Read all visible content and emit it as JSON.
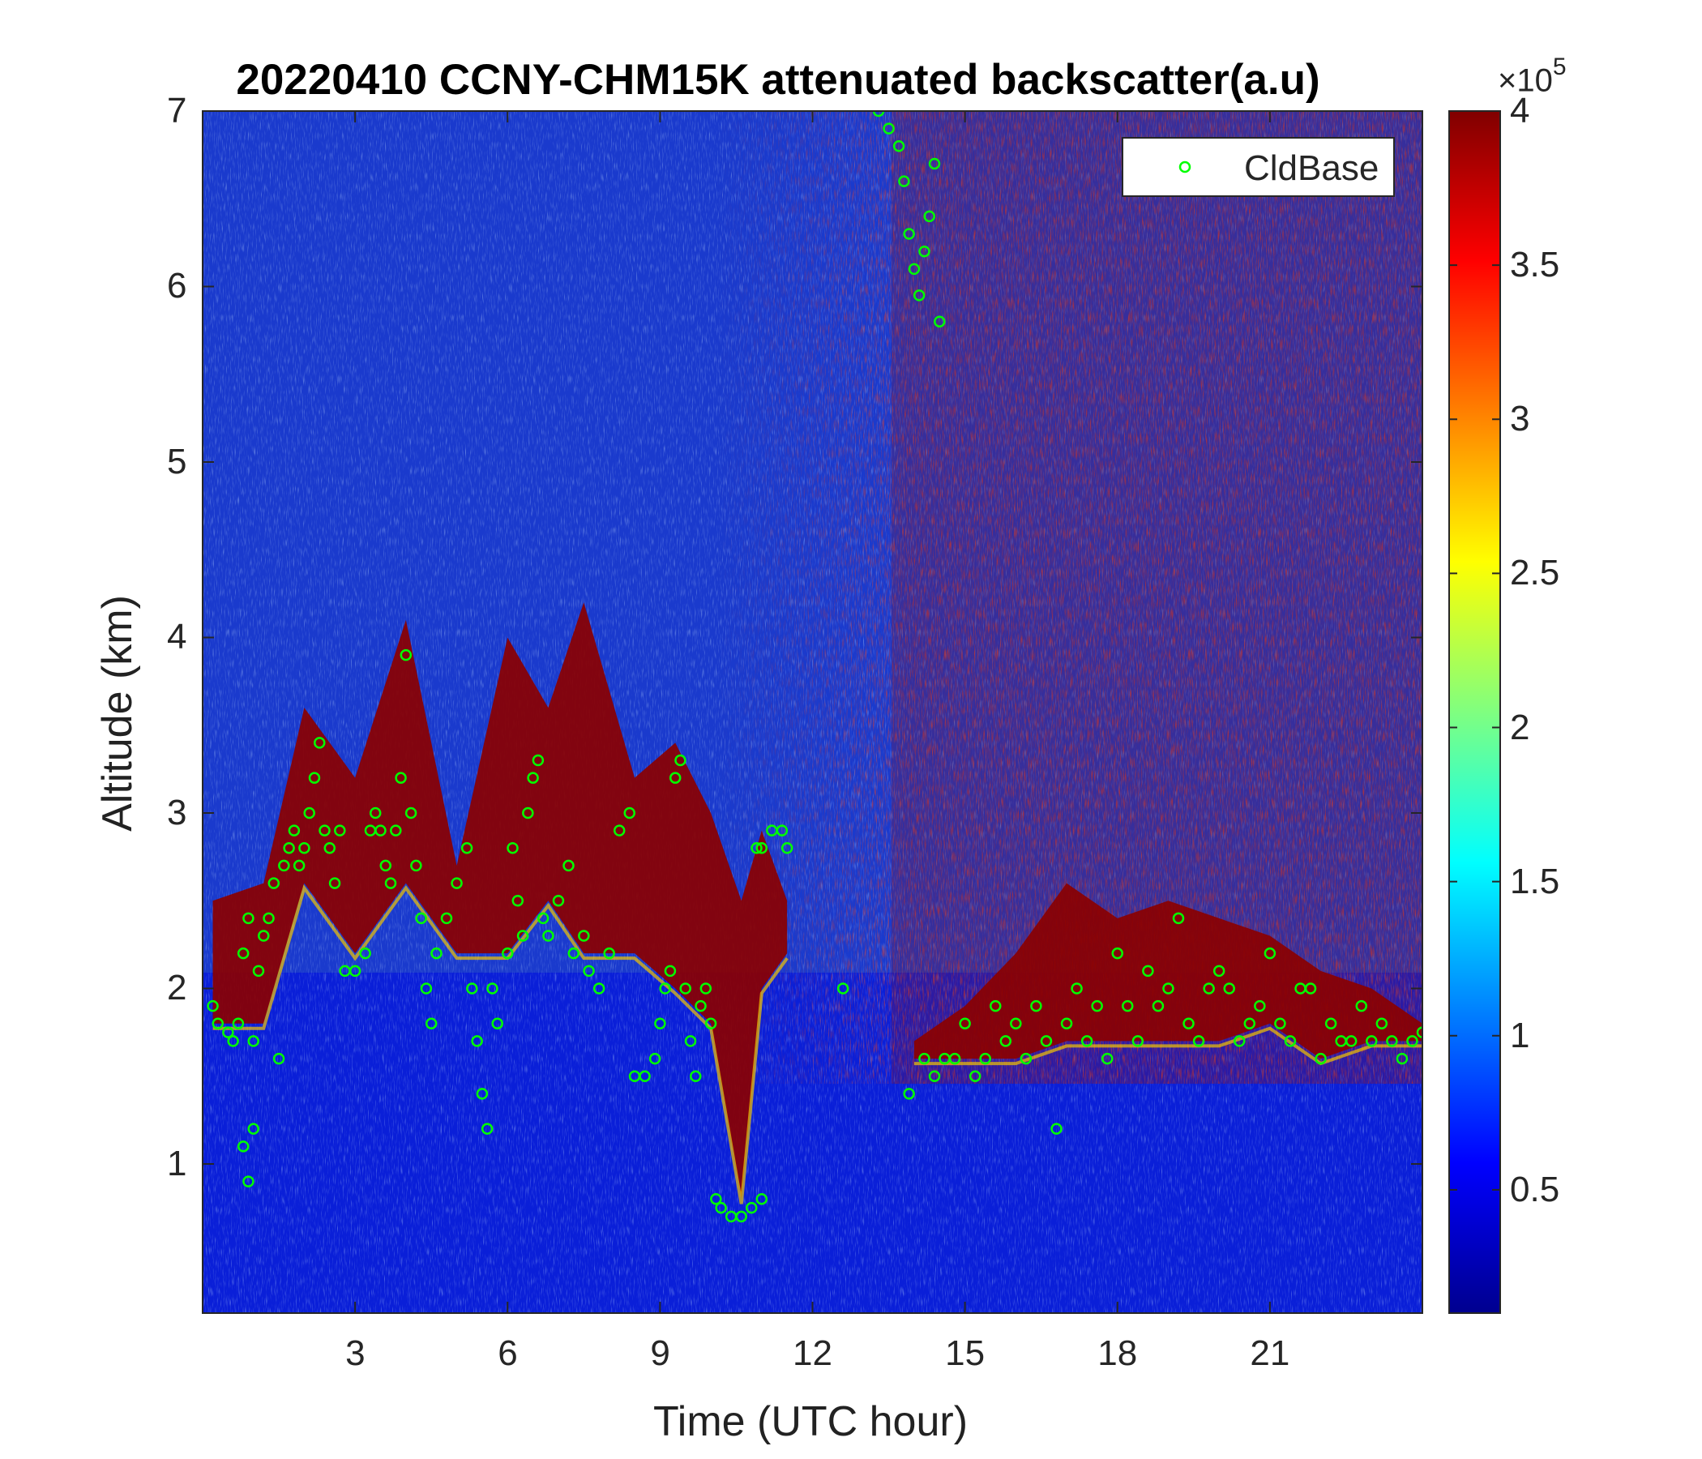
{
  "chart_data": {
    "type": "heatmap",
    "title": "20220410 CCNY-CHM15K attenuated backscatter(a.u)",
    "xlabel": "Time (UTC hour)",
    "ylabel": "Altitude (km)",
    "xlim": [
      0,
      24
    ],
    "ylim": [
      0.15,
      7
    ],
    "x_ticks": [
      "3",
      "6",
      "9",
      "12",
      "15",
      "18",
      "21"
    ],
    "y_ticks": [
      "1",
      "2",
      "3",
      "4",
      "5",
      "6",
      "7"
    ],
    "colorbar": {
      "colormap": "jet",
      "range": [
        0.1,
        4.0
      ],
      "ticks": [
        "0.5",
        "1",
        "1.5",
        "2",
        "2.5",
        "3",
        "3.5",
        "4"
      ],
      "exponent_label": "×10",
      "exponent": "5"
    },
    "legend": {
      "position": "top-right",
      "entries": [
        {
          "name": "CldBase",
          "marker": "circle",
          "color": "#00ff00"
        }
      ]
    },
    "cloud_layers": [
      {
        "x": [
          0.2,
          1.2,
          2.0,
          3.0,
          4.0,
          5.0,
          6.0,
          6.8,
          7.5,
          8.5,
          9.3,
          10.0,
          10.6,
          11.0,
          11.5
        ],
        "base": [
          1.8,
          1.8,
          2.6,
          2.2,
          2.6,
          2.2,
          2.2,
          2.5,
          2.2,
          2.2,
          2.0,
          1.8,
          0.8,
          2.0,
          2.2
        ],
        "top": [
          2.5,
          2.6,
          3.6,
          3.2,
          4.1,
          2.7,
          4.0,
          3.6,
          4.2,
          3.2,
          3.4,
          3.0,
          2.5,
          2.9,
          2.5
        ]
      },
      {
        "x": [
          14.0,
          15.0,
          16.0,
          17.0,
          18.0,
          19.0,
          20.0,
          21.0,
          22.0,
          23.0,
          24.0
        ],
        "base": [
          1.6,
          1.6,
          1.6,
          1.7,
          1.7,
          1.7,
          1.7,
          1.8,
          1.6,
          1.7,
          1.7
        ],
        "top": [
          1.7,
          1.9,
          2.2,
          2.6,
          2.4,
          2.5,
          2.4,
          2.3,
          2.1,
          2.0,
          1.8
        ]
      }
    ],
    "series": [
      {
        "name": "CldBase",
        "points": [
          [
            0.2,
            1.9
          ],
          [
            0.3,
            1.8
          ],
          [
            0.5,
            1.75
          ],
          [
            0.6,
            1.7
          ],
          [
            0.7,
            1.8
          ],
          [
            0.8,
            2.2
          ],
          [
            0.9,
            2.4
          ],
          [
            0.8,
            1.1
          ],
          [
            0.9,
            0.9
          ],
          [
            1.0,
            1.2
          ],
          [
            1.0,
            1.7
          ],
          [
            1.1,
            2.1
          ],
          [
            1.2,
            2.3
          ],
          [
            1.3,
            2.4
          ],
          [
            1.4,
            2.6
          ],
          [
            1.5,
            1.6
          ],
          [
            1.6,
            2.7
          ],
          [
            1.7,
            2.8
          ],
          [
            1.8,
            2.9
          ],
          [
            1.9,
            2.7
          ],
          [
            2.0,
            2.8
          ],
          [
            2.1,
            3.0
          ],
          [
            2.2,
            3.2
          ],
          [
            2.3,
            3.4
          ],
          [
            2.4,
            2.9
          ],
          [
            2.5,
            2.8
          ],
          [
            2.6,
            2.6
          ],
          [
            2.7,
            2.9
          ],
          [
            2.8,
            2.1
          ],
          [
            3.0,
            2.1
          ],
          [
            3.2,
            2.2
          ],
          [
            3.3,
            2.9
          ],
          [
            3.4,
            3.0
          ],
          [
            3.5,
            2.9
          ],
          [
            3.6,
            2.7
          ],
          [
            3.7,
            2.6
          ],
          [
            3.8,
            2.9
          ],
          [
            3.9,
            3.2
          ],
          [
            4.0,
            3.9
          ],
          [
            4.1,
            3.0
          ],
          [
            4.2,
            2.7
          ],
          [
            4.3,
            2.4
          ],
          [
            4.4,
            2.0
          ],
          [
            4.5,
            1.8
          ],
          [
            4.6,
            2.2
          ],
          [
            4.8,
            2.4
          ],
          [
            5.0,
            2.6
          ],
          [
            5.2,
            2.8
          ],
          [
            5.3,
            2.0
          ],
          [
            5.4,
            1.7
          ],
          [
            5.5,
            1.4
          ],
          [
            5.6,
            1.2
          ],
          [
            5.7,
            2.0
          ],
          [
            5.8,
            1.8
          ],
          [
            6.0,
            2.2
          ],
          [
            6.1,
            2.8
          ],
          [
            6.2,
            2.5
          ],
          [
            6.3,
            2.3
          ],
          [
            6.4,
            3.0
          ],
          [
            6.5,
            3.2
          ],
          [
            6.6,
            3.3
          ],
          [
            6.7,
            2.4
          ],
          [
            6.8,
            2.3
          ],
          [
            7.0,
            2.5
          ],
          [
            7.2,
            2.7
          ],
          [
            7.3,
            2.2
          ],
          [
            7.5,
            2.3
          ],
          [
            7.6,
            2.1
          ],
          [
            7.8,
            2.0
          ],
          [
            8.0,
            2.2
          ],
          [
            8.2,
            2.9
          ],
          [
            8.4,
            3.0
          ],
          [
            8.5,
            1.5
          ],
          [
            8.7,
            1.5
          ],
          [
            8.9,
            1.6
          ],
          [
            9.0,
            1.8
          ],
          [
            9.1,
            2.0
          ],
          [
            9.2,
            2.1
          ],
          [
            9.3,
            3.2
          ],
          [
            9.4,
            3.3
          ],
          [
            9.5,
            2.0
          ],
          [
            9.6,
            1.7
          ],
          [
            9.7,
            1.5
          ],
          [
            9.8,
            1.9
          ],
          [
            9.9,
            2.0
          ],
          [
            10.0,
            1.8
          ],
          [
            10.1,
            0.8
          ],
          [
            10.2,
            0.75
          ],
          [
            10.4,
            0.7
          ],
          [
            10.6,
            0.7
          ],
          [
            10.8,
            0.75
          ],
          [
            10.9,
            2.8
          ],
          [
            11.0,
            2.8
          ],
          [
            11.0,
            0.8
          ],
          [
            11.2,
            2.9
          ],
          [
            11.4,
            2.9
          ],
          [
            11.5,
            2.8
          ],
          [
            12.6,
            2.0
          ],
          [
            13.3,
            7.0
          ],
          [
            13.5,
            6.9
          ],
          [
            13.7,
            6.8
          ],
          [
            13.8,
            6.6
          ],
          [
            13.9,
            6.3
          ],
          [
            14.0,
            6.1
          ],
          [
            14.1,
            5.95
          ],
          [
            14.2,
            6.2
          ],
          [
            14.3,
            6.4
          ],
          [
            14.4,
            6.7
          ],
          [
            14.5,
            5.8
          ],
          [
            13.9,
            1.4
          ],
          [
            14.2,
            1.6
          ],
          [
            14.4,
            1.5
          ],
          [
            14.6,
            1.6
          ],
          [
            14.8,
            1.6
          ],
          [
            15.0,
            1.8
          ],
          [
            15.2,
            1.5
          ],
          [
            15.4,
            1.6
          ],
          [
            15.6,
            1.9
          ],
          [
            15.8,
            1.7
          ],
          [
            16.0,
            1.8
          ],
          [
            16.2,
            1.6
          ],
          [
            16.4,
            1.9
          ],
          [
            16.6,
            1.7
          ],
          [
            16.8,
            1.2
          ],
          [
            17.0,
            1.8
          ],
          [
            17.2,
            2.0
          ],
          [
            17.4,
            1.7
          ],
          [
            17.6,
            1.9
          ],
          [
            17.8,
            1.6
          ],
          [
            18.0,
            2.2
          ],
          [
            18.2,
            1.9
          ],
          [
            18.4,
            1.7
          ],
          [
            18.6,
            2.1
          ],
          [
            18.8,
            1.9
          ],
          [
            19.0,
            2.0
          ],
          [
            19.2,
            2.4
          ],
          [
            19.4,
            1.8
          ],
          [
            19.6,
            1.7
          ],
          [
            19.8,
            2.0
          ],
          [
            20.0,
            2.1
          ],
          [
            20.2,
            2.0
          ],
          [
            20.4,
            1.7
          ],
          [
            20.6,
            1.8
          ],
          [
            20.8,
            1.9
          ],
          [
            21.0,
            2.2
          ],
          [
            21.2,
            1.8
          ],
          [
            21.4,
            1.7
          ],
          [
            21.6,
            2.0
          ],
          [
            21.8,
            2.0
          ],
          [
            22.0,
            1.6
          ],
          [
            22.2,
            1.8
          ],
          [
            22.4,
            1.7
          ],
          [
            22.6,
            1.7
          ],
          [
            22.8,
            1.9
          ],
          [
            23.0,
            1.7
          ],
          [
            23.2,
            1.8
          ],
          [
            23.4,
            1.7
          ],
          [
            23.6,
            1.6
          ],
          [
            23.8,
            1.7
          ],
          [
            24.0,
            1.75
          ]
        ]
      }
    ]
  }
}
